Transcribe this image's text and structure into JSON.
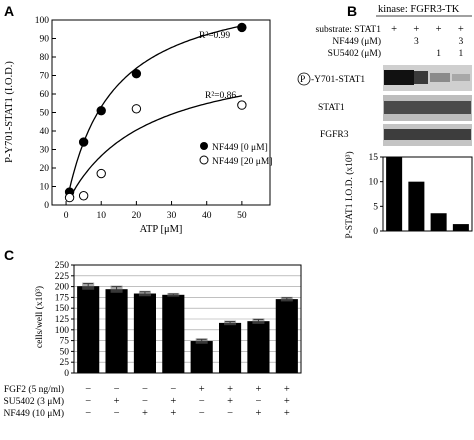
{
  "chart_data": [
    {
      "panel": "A",
      "type": "scatter",
      "xlabel": "ATP [μM]",
      "ylabel": "P-Y701-STAT1 (I.O.D.)",
      "xlim": [
        -4,
        58
      ],
      "ylim": [
        0,
        100
      ],
      "xticks": [
        "0",
        "10",
        "20",
        "30",
        "40",
        "50"
      ],
      "yticks": [
        "0",
        "10",
        "20",
        "30",
        "40",
        "50",
        "60",
        "70",
        "80",
        "90",
        "100"
      ],
      "grid": false,
      "legend": "bottom-right",
      "series": [
        {
          "name": "NF449 [0 μM]",
          "marker": "filled-circle",
          "x": [
            1,
            5,
            10,
            20,
            50
          ],
          "y": [
            7,
            34,
            51,
            71,
            96
          ],
          "fit_label": "R²=0.99"
        },
        {
          "name": "NF449 [20 μM]",
          "marker": "open-circle",
          "x": [
            1,
            5,
            10,
            20,
            50
          ],
          "y": [
            4,
            5,
            17,
            52,
            54
          ],
          "fit_label": "R²=0.86"
        }
      ]
    },
    {
      "panel": "B",
      "type": "bar",
      "title": "kinase: FGFR3-TK",
      "ylabel": "P-STAT1 I.O.D. (x10³)",
      "ylim": [
        0,
        15
      ],
      "yticks": [
        "0",
        "5",
        "10",
        "15"
      ],
      "values": [
        15,
        10,
        3.6,
        1.4
      ],
      "conditions": [
        {
          "label": "substrate: STAT1",
          "values": [
            "+",
            "+",
            "+",
            "+"
          ]
        },
        {
          "label": "NF449 (μM)",
          "values": [
            "",
            "3",
            "",
            "3"
          ]
        },
        {
          "label": "SU5402 (μM)",
          "values": [
            "",
            "",
            "1",
            "1"
          ]
        }
      ],
      "blot_labels": [
        "P",
        "-Y701-STAT1",
        "STAT1",
        "FGFR3"
      ]
    },
    {
      "panel": "C",
      "type": "bar",
      "ylabel": "cells/well (x10³)",
      "ylim": [
        0,
        250
      ],
      "yticks": [
        "0",
        "25",
        "50",
        "75",
        "100",
        "125",
        "150",
        "175",
        "200",
        "225",
        "250"
      ],
      "grid": true,
      "values": [
        201,
        194,
        184,
        181,
        74,
        116,
        120,
        171
      ],
      "errors": [
        6,
        6,
        4,
        2,
        4,
        3,
        4,
        3
      ],
      "conditions": [
        {
          "label": "FGF2 (5 ng/ml)",
          "values": [
            "−",
            "−",
            "−",
            "−",
            "+",
            "+",
            "+",
            "+"
          ]
        },
        {
          "label": "SU5402 (3 μM)",
          "values": [
            "−",
            "+",
            "−",
            "+",
            "−",
            "+",
            "−",
            "+"
          ]
        },
        {
          "label": "NF449 (10 μM)",
          "values": [
            "−",
            "−",
            "+",
            "+",
            "−",
            "−",
            "+",
            "+"
          ]
        }
      ]
    }
  ]
}
